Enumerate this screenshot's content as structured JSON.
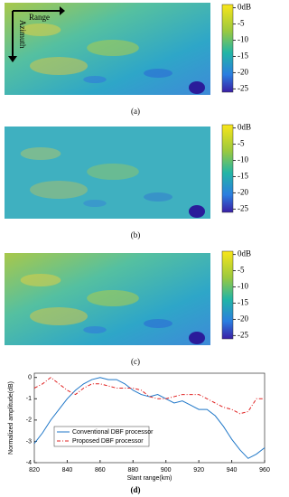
{
  "panels": [
    {
      "label": "(a)",
      "range_label": "Range",
      "azimuth_label": "Azimuth"
    },
    {
      "label": "(b)"
    },
    {
      "label": "(c)"
    }
  ],
  "colorbar": {
    "clim": [
      -26,
      1
    ],
    "ticks": [
      {
        "value": 0,
        "label": "0dB"
      },
      -5,
      -10,
      -15,
      -20,
      -25
    ]
  },
  "chart_data": {
    "type": "line",
    "label": "(d)",
    "xlabel": "Slant range(km)",
    "ylabel": "Normalized amplitude(dB)",
    "x": [
      820,
      825,
      830,
      835,
      840,
      845,
      850,
      855,
      860,
      865,
      870,
      875,
      880,
      885,
      890,
      895,
      900,
      905,
      910,
      915,
      920,
      925,
      930,
      935,
      940,
      945,
      950,
      955,
      960
    ],
    "series": [
      {
        "name": "Conventional DBF processor",
        "color": "#1f77c8",
        "dash": "none",
        "values": [
          -3.1,
          -2.6,
          -2.0,
          -1.5,
          -1.0,
          -0.6,
          -0.3,
          -0.1,
          0.0,
          -0.1,
          -0.1,
          -0.3,
          -0.6,
          -0.8,
          -0.9,
          -0.8,
          -1.0,
          -1.2,
          -1.1,
          -1.3,
          -1.5,
          -1.5,
          -1.8,
          -2.3,
          -2.9,
          -3.4,
          -3.8,
          -3.6,
          -3.3
        ]
      },
      {
        "name": "Proposed DBF processor",
        "color": "#e02020",
        "dash": "4 2 1 2",
        "values": [
          -0.5,
          -0.3,
          0.0,
          -0.3,
          -0.6,
          -0.8,
          -0.5,
          -0.3,
          -0.3,
          -0.4,
          -0.5,
          -0.5,
          -0.5,
          -0.6,
          -0.9,
          -1.0,
          -1.0,
          -0.9,
          -0.8,
          -0.8,
          -0.8,
          -1.0,
          -1.2,
          -1.4,
          -1.5,
          -1.7,
          -1.6,
          -1.0,
          -1.0
        ]
      }
    ],
    "xlim": [
      820,
      960
    ],
    "xticks": [
      820,
      840,
      860,
      880,
      900,
      920,
      940,
      960
    ],
    "ylim": [
      -4,
      0.2
    ],
    "yticks": [
      0,
      -1,
      -2,
      -3,
      -4
    ],
    "legend": "lower-left"
  }
}
